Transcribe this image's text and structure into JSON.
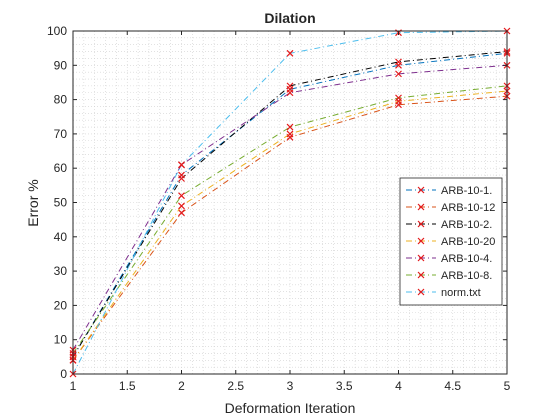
{
  "chart_data": {
    "type": "line",
    "title": "Dilation",
    "xlabel": "Deformation Iteration",
    "ylabel": "Error %",
    "xlim": [
      1,
      5
    ],
    "ylim": [
      0,
      100
    ],
    "xticks": [
      "1",
      "1.5",
      "2",
      "2.5",
      "3",
      "3.5",
      "4",
      "4.5",
      "5"
    ],
    "yticks": [
      "0",
      "10",
      "20",
      "30",
      "40",
      "50",
      "60",
      "70",
      "80",
      "90",
      "100"
    ],
    "grid": "minor dotted",
    "legend_position": "right",
    "marker": "x",
    "marker_color": "#e41a1c",
    "x": [
      1,
      2,
      3,
      4,
      5
    ],
    "series": [
      {
        "name": "ARB-10-1.",
        "color": "#0072bd",
        "dash": "6,3,1,3",
        "values": [
          5,
          58,
          83,
          90,
          93.5
        ]
      },
      {
        "name": "ARB-10-12",
        "color": "#d95319",
        "dash": "6,3,1,3",
        "values": [
          4,
          47,
          69,
          78.5,
          81
        ]
      },
      {
        "name": "ARB-10-2.",
        "color": "#000000",
        "dash": "6,3,1,3",
        "values": [
          5,
          57,
          84,
          91,
          94
        ]
      },
      {
        "name": "ARB-10-20",
        "color": "#edb120",
        "dash": "6,3,1,3",
        "values": [
          4,
          49,
          70,
          79.5,
          82.5
        ]
      },
      {
        "name": "ARB-10-4.",
        "color": "#7e2f8e",
        "dash": "6,3,1,3",
        "values": [
          7,
          61,
          82,
          87.5,
          90
        ]
      },
      {
        "name": "ARB-10-8.",
        "color": "#77ac30",
        "dash": "6,3,1,3",
        "values": [
          6,
          52,
          72,
          80.5,
          84
        ]
      },
      {
        "name": "norm.txt",
        "color": "#4dbeee",
        "dash": "6,3,1,3",
        "values": [
          0,
          61,
          93.5,
          99.5,
          100
        ]
      }
    ]
  }
}
